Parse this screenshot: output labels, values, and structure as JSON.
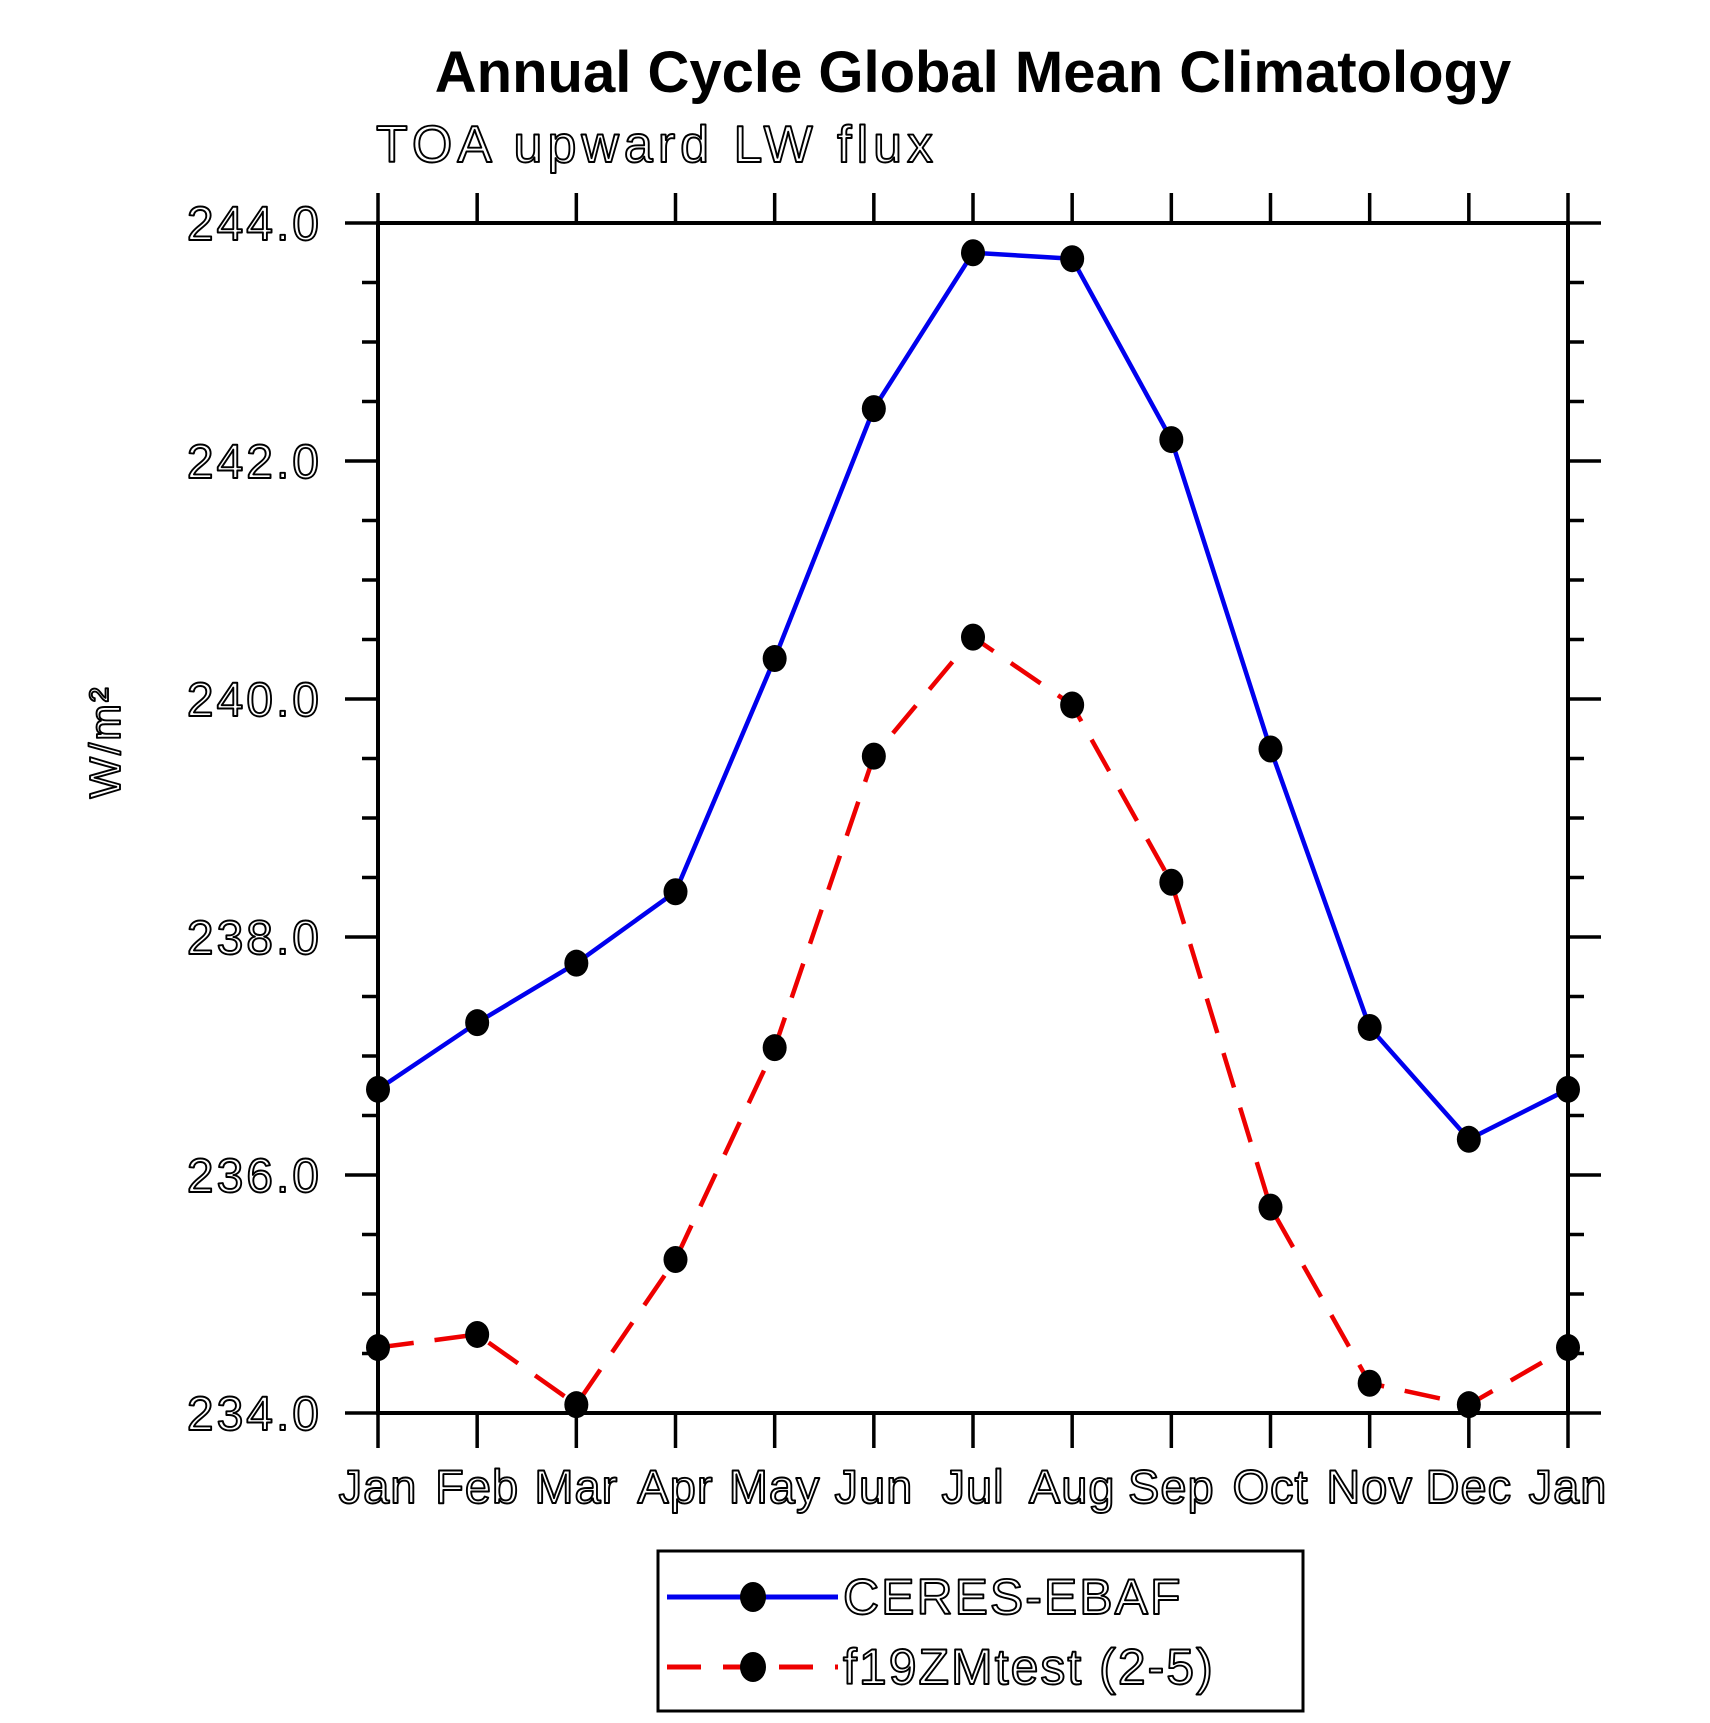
{
  "chart_data": {
    "type": "line",
    "title": "Annual Cycle Global Mean Climatology",
    "subtitle": "TOA upward LW flux",
    "ylabel": "W/m²",
    "xlabel": "",
    "ylim": [
      234.0,
      244.0
    ],
    "ytick_major_step": 2.0,
    "ytick_minor_step": 0.5,
    "ytick_labels": [
      "234.0",
      "236.0",
      "238.0",
      "240.0",
      "242.0",
      "244.0"
    ],
    "grid": false,
    "legend_position": "bottom-center-boxed",
    "categories": [
      "Jan",
      "Feb",
      "Mar",
      "Apr",
      "May",
      "Jun",
      "Jul",
      "Aug",
      "Sep",
      "Oct",
      "Nov",
      "Dec",
      "Jan"
    ],
    "series": [
      {
        "name": "CERES-EBAF",
        "color": "#0000ee",
        "line_style": "solid",
        "marker": "filled-circle",
        "marker_color": "#000000",
        "values": [
          236.72,
          237.28,
          237.78,
          238.38,
          240.34,
          242.44,
          243.75,
          243.7,
          242.18,
          239.58,
          237.24,
          236.3,
          236.72
        ]
      },
      {
        "name": "f19ZMtest (2-5)",
        "color": "#ee0000",
        "line_style": "dashed",
        "marker": "filled-circle",
        "marker_color": "#000000",
        "values": [
          234.55,
          234.66,
          234.07,
          235.29,
          237.07,
          239.52,
          240.52,
          239.95,
          238.46,
          235.73,
          234.25,
          234.07,
          234.55
        ]
      }
    ],
    "axis_color": "#000000",
    "background_color": "#ffffff"
  }
}
